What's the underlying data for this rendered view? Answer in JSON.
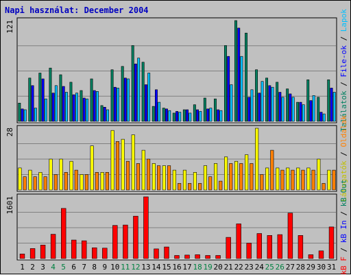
{
  "page": {
    "title": "Napi használat: December 2004",
    "colors": {
      "background": "#c0c0c0",
      "panel": "#c0c0c0",
      "title": "#0000c0"
    }
  },
  "chart_data": {
    "type": "bar",
    "title": "Napi használat: December 2004",
    "grid": true,
    "categories": [
      "1",
      "2",
      "3",
      "4",
      "5",
      "6",
      "7",
      "8",
      "9",
      "10",
      "11",
      "12",
      "13",
      "14",
      "15",
      "16",
      "17",
      "18",
      "19",
      "20",
      "21",
      "22",
      "23",
      "24",
      "25",
      "26",
      "27",
      "28",
      "29",
      "30",
      "31"
    ],
    "weekend_categories": [
      "4",
      "5",
      "11",
      "12",
      "18",
      "19",
      "25",
      "26"
    ],
    "weekend_label_color": "#008040",
    "weekday_label_color": "#000000",
    "panels": [
      {
        "id": "hits",
        "max_label": "121",
        "ylim": [
          0,
          121
        ],
        "series": [
          {
            "name": "Találatok",
            "color": "#008060",
            "values": [
              22,
              52,
              58,
              64,
              56,
              47,
              37,
              51,
              19,
              62,
              66,
              91,
              71,
              18,
              16,
              10,
              14,
              20,
              28,
              27,
              91,
              121,
              106,
              62,
              52,
              47,
              39,
              23,
              50,
              29,
              50
            ]
          },
          {
            "name": "File-ok",
            "color": "#0000ff",
            "values": [
              15,
              43,
              51,
              34,
              42,
              32,
              28,
              37,
              17,
              41,
              52,
              69,
              44,
              38,
              15,
              12,
              14,
              14,
              15,
              14,
              78,
              112,
              29,
              34,
              43,
              35,
              33,
              23,
              25,
              11,
              40
            ]
          },
          {
            "name": "Lapok",
            "color": "#00c0ff",
            "values": [
              14,
              16,
              27,
              43,
              35,
              34,
              27,
              36,
              14,
              40,
              51,
              76,
              58,
              23,
              13,
              11,
              10,
              12,
              16,
              13,
              44,
              78,
              38,
              48,
              41,
              29,
              29,
              20,
              31,
              9,
              35
            ]
          }
        ],
        "legend_parts": [
          {
            "text": "Találatok",
            "color": "#008060"
          },
          {
            "text": " / ",
            "color": "#000000"
          },
          {
            "text": "File-ok",
            "color": "#0000ff"
          },
          {
            "text": " / ",
            "color": "#000000"
          },
          {
            "text": "Lapok",
            "color": "#00c0ff"
          }
        ]
      },
      {
        "id": "visits",
        "max_label": "28",
        "ylim": [
          0,
          28
        ],
        "series": [
          {
            "name": "Látogatók",
            "color": "#ffff00",
            "values": [
              10,
              9,
              8,
              14,
              14,
              13,
              7,
              20,
              8,
              27,
              23,
              25,
              18,
              12,
              11,
              9,
              9,
              8,
              11,
              12,
              15,
              13,
              16,
              28,
              10,
              10,
              10,
              10,
              10,
              14,
              9
            ]
          },
          {
            "name": "Oldalak",
            "color": "#ff8000",
            "values": [
              6,
              6,
              6,
              7,
              8,
              9,
              7,
              8,
              8,
              22,
              13,
              12,
              14,
              11,
              11,
              3,
              3,
              3,
              6,
              4,
              12,
              12,
              12,
              7,
              18,
              9,
              9,
              9,
              9,
              3,
              9
            ]
          }
        ],
        "legend_parts": [
          {
            "text": "Látogatók",
            "color": "#c0c000"
          },
          {
            "text": " / ",
            "color": "#000000"
          },
          {
            "text": "Oldalak",
            "color": "#ff8000"
          }
        ]
      },
      {
        "id": "kbytes",
        "max_label": "1601",
        "ylim": [
          0,
          1601
        ],
        "series": [
          {
            "name": "kB F",
            "color": "#ff0000",
            "values": [
              120,
              260,
              350,
              630,
              1300,
              480,
              460,
              280,
              270,
              860,
              870,
              1100,
              1601,
              250,
              300,
              80,
              90,
              100,
              80,
              80,
              550,
              900,
              400,
              650,
              600,
              620,
              1180,
              600,
              100,
              200,
              820
            ]
          }
        ],
        "legend_parts": [
          {
            "text": "kB F",
            "color": "#ff0000"
          },
          {
            "text": " / ",
            "color": "#000000"
          },
          {
            "text": "kB In",
            "color": "#0000ff"
          },
          {
            "text": " / ",
            "color": "#000000"
          },
          {
            "text": "kB Out",
            "color": "#008060"
          }
        ]
      }
    ]
  }
}
